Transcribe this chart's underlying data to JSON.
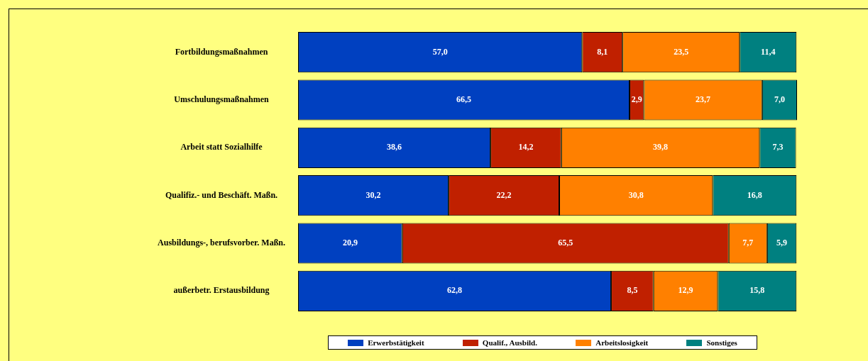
{
  "chart_data": {
    "type": "bar",
    "orientation": "horizontal",
    "stacked": true,
    "categories": [
      "Fortbildungsmaßnahmen",
      "Umschulungsmaßnahmen",
      "Arbeit statt Sozialhilfe",
      "Qualifiz.- und Beschäft. Maßn.",
      "Ausbildungs-, berufsvorber. Maßn.",
      "außerbetr. Erstausbildung"
    ],
    "series": [
      {
        "name": "Erwerbstätigkeit",
        "color": "#0040c0",
        "values": [
          57.0,
          66.5,
          38.6,
          30.2,
          20.9,
          62.8
        ],
        "value_labels": [
          "57,0",
          "66,5",
          "38,6",
          "30,2",
          "20,9",
          "62,8"
        ]
      },
      {
        "name": "Qualif., Ausbild.",
        "color": "#c02000",
        "values": [
          8.1,
          2.9,
          14.2,
          22.2,
          65.5,
          8.5
        ],
        "value_labels": [
          "8,1",
          "2,9",
          "14,2",
          "22,2",
          "65,5",
          "8,5"
        ]
      },
      {
        "name": "Arbeitslosigkeit",
        "color": "#ff8000",
        "values": [
          23.5,
          23.7,
          39.8,
          30.8,
          7.7,
          12.9
        ],
        "value_labels": [
          "23,5",
          "23,7",
          "39,8",
          "30,8",
          "7,7",
          "12,9"
        ]
      },
      {
        "name": "Sonstiges",
        "color": "#008080",
        "values": [
          11.4,
          7.0,
          7.3,
          16.8,
          5.9,
          15.8
        ],
        "value_labels": [
          "11,4",
          "7,0",
          "7,3",
          "16,8",
          "5,9",
          "15,8"
        ]
      }
    ],
    "tick_labels": "y",
    "legend": "bottom"
  }
}
